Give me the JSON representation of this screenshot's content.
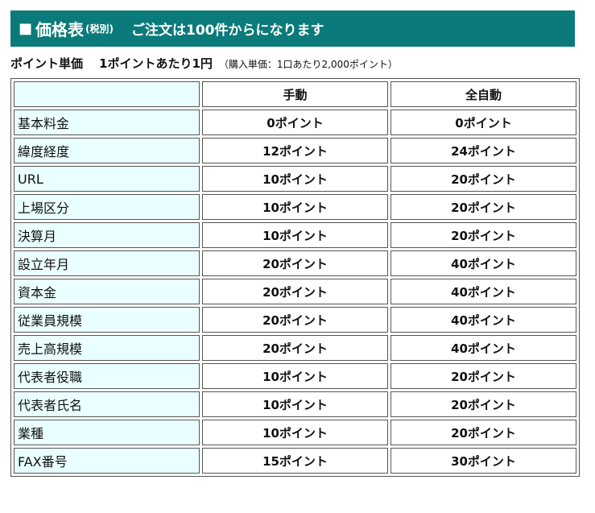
{
  "header": {
    "square": "■",
    "title": "価格表",
    "tax": "(税別)",
    "notice": "ご注文は100件からになります"
  },
  "unit": {
    "label": "ポイント単価",
    "value": "1ポイントあたり1円",
    "note": "（購入単価：1口あたり2,000ポイント）"
  },
  "table": {
    "corner": "",
    "col_manual": "手動",
    "col_auto": "全自動",
    "rows": [
      {
        "item": "基本料金",
        "manual": "0ポイント",
        "auto": "0ポイント"
      },
      {
        "item": "緯度経度",
        "manual": "12ポイント",
        "auto": "24ポイント"
      },
      {
        "item": "URL",
        "manual": "10ポイント",
        "auto": "20ポイント"
      },
      {
        "item": "上場区分",
        "manual": "10ポイント",
        "auto": "20ポイント"
      },
      {
        "item": "決算月",
        "manual": "10ポイント",
        "auto": "20ポイント"
      },
      {
        "item": "設立年月",
        "manual": "20ポイント",
        "auto": "40ポイント"
      },
      {
        "item": "資本金",
        "manual": "20ポイント",
        "auto": "40ポイント"
      },
      {
        "item": "従業員規模",
        "manual": "20ポイント",
        "auto": "40ポイント"
      },
      {
        "item": "売上高規模",
        "manual": "20ポイント",
        "auto": "40ポイント"
      },
      {
        "item": "代表者役職",
        "manual": "10ポイント",
        "auto": "20ポイント"
      },
      {
        "item": "代表者氏名",
        "manual": "10ポイント",
        "auto": "20ポイント"
      },
      {
        "item": "業種",
        "manual": "10ポイント",
        "auto": "20ポイント"
      },
      {
        "item": "FAX番号",
        "manual": "15ポイント",
        "auto": "30ポイント"
      }
    ]
  },
  "colors": {
    "header_bg": "#0b7a7a",
    "item_cell_bg": "#eaffff",
    "border": "#555555"
  }
}
